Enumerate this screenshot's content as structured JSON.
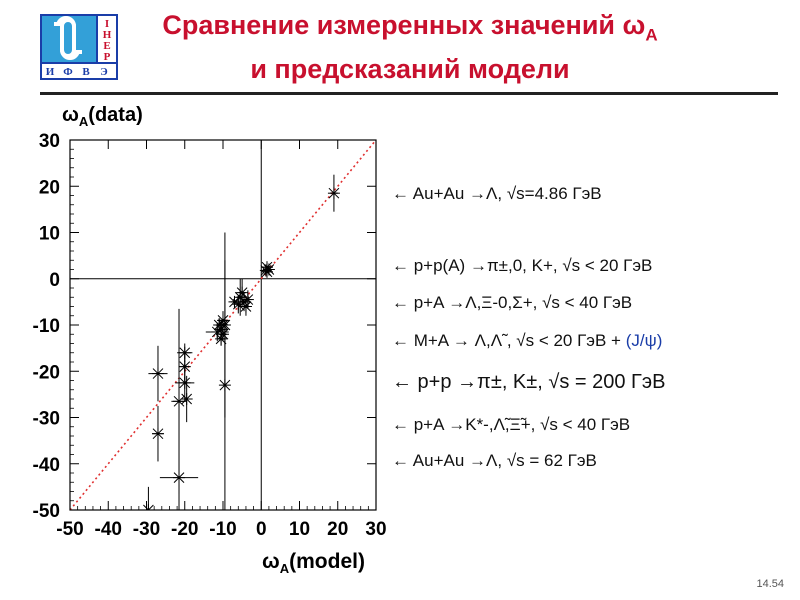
{
  "logo": {
    "letters_right": [
      "I",
      "H",
      "E",
      "P"
    ],
    "letters_bottom": [
      "И",
      "Ф",
      "В",
      "Э"
    ]
  },
  "title": {
    "line1": "Сравнение измеренных значений ω",
    "line1_sub": "A",
    "line2": "и предсказаний модели"
  },
  "page_number": "14.54",
  "annotations": [
    {
      "text": "← Au+Au →Λ, √s=4.86 ГэВ"
    },
    {
      "text": "← p+p(A) →π±,0, K+, √s < 20 ГэВ"
    },
    {
      "text": "← p+A →Λ,Ξ-0,Σ+, √s < 40 ГэВ"
    },
    {
      "text": "← M+A → Λ,Λ̃ , √s < 20 ГэВ  + ",
      "extra": "(J/ψ)"
    },
    {
      "text": "← p+p →π±, K±, √s = 200 ГэВ"
    },
    {
      "text": "← p+A →K*-,Λ̃,Ξ̃+, √s < 40 ГэВ"
    },
    {
      "text": "← Au+Au →Λ, √s = 62 ГэВ"
    }
  ],
  "chart_data": {
    "type": "scatter",
    "title": "",
    "xlabel": "ω",
    "xlabel_sub": "A",
    "xlabel_rest": "(model)",
    "ylabel": "ω",
    "ylabel_sub": "A",
    "ylabel_rest": "(data)",
    "xlim": [
      -50,
      30
    ],
    "ylim": [
      -50,
      30
    ],
    "xticks": [
      -50,
      -40,
      -30,
      -20,
      -10,
      0,
      10,
      20,
      30
    ],
    "yticks": [
      -50,
      -40,
      -30,
      -20,
      -10,
      0,
      10,
      20,
      30
    ],
    "diagonal_line": {
      "style": "dotted",
      "color": "#e03030"
    },
    "zero_lines": true,
    "marker": "asterisk",
    "points": [
      {
        "x": 19,
        "y": 18.5,
        "xerr": 1,
        "yerr": 4
      },
      {
        "x": 1.5,
        "y": 2.5,
        "xerr": 1,
        "yerr": 0.5
      },
      {
        "x": 1.5,
        "y": 1.5,
        "xerr": 1,
        "yerr": 0.5
      },
      {
        "x": 1.2,
        "y": 1.8,
        "xerr": 1,
        "yerr": 0.5
      },
      {
        "x": 2,
        "y": 2,
        "xerr": 0.5,
        "yerr": 0.5
      },
      {
        "x": -4.5,
        "y": -5,
        "xerr": 1,
        "yerr": 2
      },
      {
        "x": -5,
        "y": -3,
        "xerr": 1,
        "yerr": 3
      },
      {
        "x": -5.5,
        "y": -4,
        "xerr": 1,
        "yerr": 4
      },
      {
        "x": -4,
        "y": -6,
        "xerr": 1,
        "yerr": 2
      },
      {
        "x": -6,
        "y": -5.5,
        "xerr": 1,
        "yerr": 2
      },
      {
        "x": -3.5,
        "y": -4.5,
        "xerr": 1,
        "yerr": 2
      },
      {
        "x": -7,
        "y": -5,
        "xerr": 1,
        "yerr": 1
      },
      {
        "x": -10,
        "y": -9,
        "xerr": 1,
        "yerr": 2
      },
      {
        "x": -10,
        "y": -10,
        "xerr": 1,
        "yerr": 1.5
      },
      {
        "x": -10.5,
        "y": -11,
        "xerr": 1,
        "yerr": 1.5
      },
      {
        "x": -11,
        "y": -10,
        "xerr": 1,
        "yerr": 1.5
      },
      {
        "x": -11.5,
        "y": -11.5,
        "xerr": 3,
        "yerr": 2
      },
      {
        "x": -10,
        "y": -12,
        "xerr": 1,
        "yerr": 1.5
      },
      {
        "x": -10.5,
        "y": -13,
        "xerr": 1,
        "yerr": 1.5
      },
      {
        "x": -9.5,
        "y": -10,
        "xerr": 0.5,
        "yerr": 20
      },
      {
        "x": -9.5,
        "y": -23,
        "xerr": 0.5,
        "yerr": 27
      },
      {
        "x": -27,
        "y": -20.5,
        "xerr": 2.5,
        "yerr": 6
      },
      {
        "x": -27,
        "y": -33.5,
        "xerr": 1.5,
        "yerr": 6
      },
      {
        "x": -20,
        "y": -16,
        "xerr": 2,
        "yerr": 2
      },
      {
        "x": -20,
        "y": -19,
        "xerr": 1.5,
        "yerr": 3
      },
      {
        "x": -20,
        "y": -22.5,
        "xerr": 2.5,
        "yerr": 4
      },
      {
        "x": -21.5,
        "y": -26.5,
        "xerr": 2,
        "yerr": 20
      },
      {
        "x": -19.5,
        "y": -26,
        "xerr": 1.5,
        "yerr": 5
      },
      {
        "x": -21.5,
        "y": -43,
        "xerr": 5,
        "yerr": 20
      },
      {
        "x": -29.5,
        "y": -50,
        "xerr": 1,
        "yerr": 5
      }
    ]
  }
}
